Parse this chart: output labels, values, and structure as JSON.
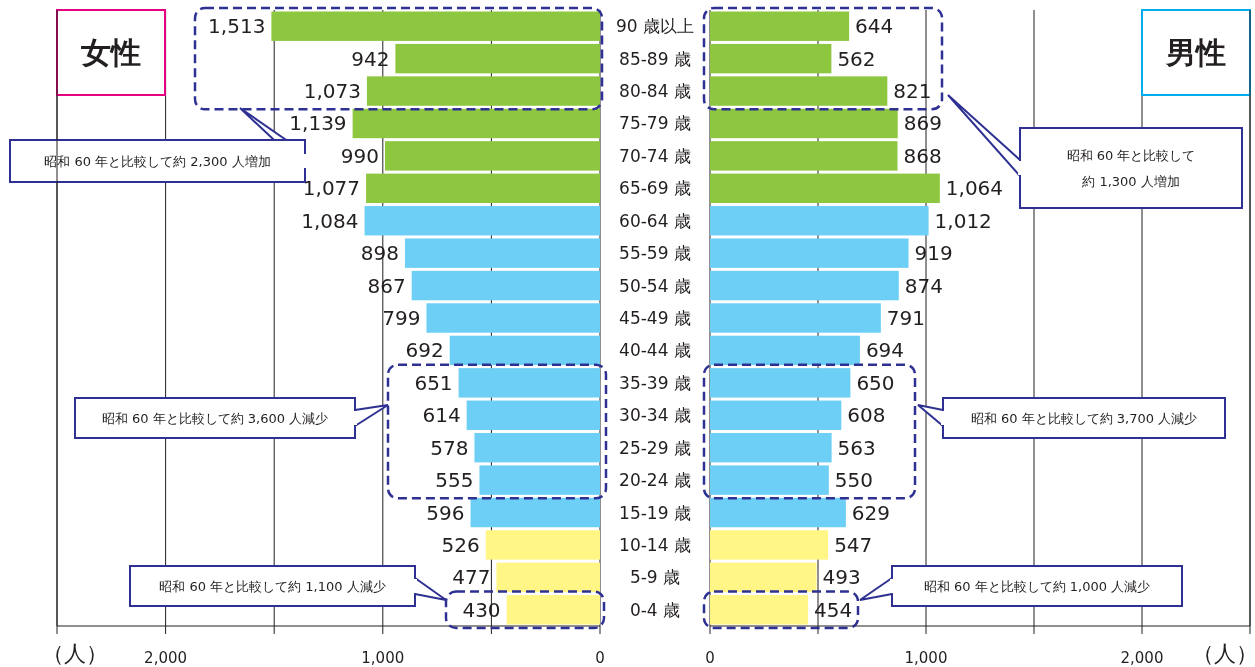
{
  "chart_data": [
    {
      "type": "bar",
      "orientation": "horizontal",
      "title": "女性",
      "xlabel": "（人）",
      "grid": "x",
      "value_labels": [
        "1,513",
        "942",
        "1,073",
        "1,139",
        "990",
        "1,077",
        "1,084",
        "898",
        "867",
        "799",
        "692",
        "651",
        "614",
        "578",
        "555",
        "596",
        "526",
        "477",
        "430"
      ],
      "categories": [
        "90 歳以上",
        "85-89 歳",
        "80-84 歳",
        "75-79 歳",
        "70-74 歳",
        "65-69 歳",
        "60-64 歳",
        "55-59 歳",
        "50-54 歳",
        "45-49 歳",
        "40-44 歳",
        "35-39 歳",
        "30-34 歳",
        "25-29 歳",
        "20-24 歳",
        "15-19 歳",
        "10-14 歳",
        "5-9 歳",
        "0-4 歳"
      ],
      "values": [
        1513,
        942,
        1073,
        1139,
        990,
        1077,
        1084,
        898,
        867,
        799,
        692,
        651,
        614,
        578,
        555,
        596,
        526,
        477,
        430
      ],
      "colors": [
        "#8dc63f",
        "#8dc63f",
        "#8dc63f",
        "#8dc63f",
        "#8dc63f",
        "#8dc63f",
        "#6dcff6",
        "#6dcff6",
        "#6dcff6",
        "#6dcff6",
        "#6dcff6",
        "#6dcff6",
        "#6dcff6",
        "#6dcff6",
        "#6dcff6",
        "#6dcff6",
        "#fff685",
        "#fff685",
        "#fff685"
      ],
      "xlim": [
        2500,
        0
      ],
      "xticks": [
        {
          "value": 2500,
          "label": null
        },
        {
          "value": 2000,
          "label": "2,000"
        },
        {
          "value": 1500,
          "label": null
        },
        {
          "value": 1000,
          "label": "1,000"
        },
        {
          "value": 500,
          "label": null
        },
        0
      ],
      "annotations": [
        "昭和 60 年と比較して約 2,300 人増加",
        "昭和 60 年と比較して約 3,600 人減少",
        "昭和 60 年と比較して約 1,100 人減少"
      ]
    },
    {
      "type": "bar",
      "orientation": "horizontal",
      "title": "男性",
      "xlabel": "（人）",
      "grid": "x",
      "value_labels": [
        "644",
        "562",
        "821",
        "869",
        "868",
        "1,064",
        "1,012",
        "919",
        "874",
        "791",
        "694",
        "650",
        "608",
        "563",
        "550",
        "629",
        "547",
        "493",
        "454"
      ],
      "categories": [
        null,
        null,
        null,
        null,
        null,
        null,
        null,
        null,
        null,
        null,
        null,
        null,
        null,
        null,
        null,
        null,
        null,
        null,
        null
      ],
      "values": [
        644,
        562,
        821,
        869,
        868,
        1064,
        1012,
        919,
        874,
        791,
        694,
        650,
        608,
        563,
        550,
        629,
        547,
        493,
        454
      ],
      "colors": [
        "#8dc63f",
        "#8dc63f",
        "#8dc63f",
        "#8dc63f",
        "#8dc63f",
        "#8dc63f",
        "#6dcff6",
        "#6dcff6",
        "#6dcff6",
        "#6dcff6",
        "#6dcff6",
        "#6dcff6",
        "#6dcff6",
        "#6dcff6",
        "#6dcff6",
        "#6dcff6",
        "#fff685",
        "#fff685",
        "#fff685"
      ],
      "xlim": [
        0,
        2500
      ],
      "xticks": [
        0,
        {
          "value": 500,
          "label": null
        },
        {
          "value": 1000,
          "label": "1,000"
        },
        {
          "value": 1500,
          "label": null
        },
        {
          "value": 2000,
          "label": "2,000"
        },
        {
          "value": 2500,
          "label": null
        }
      ],
      "annotations": [
        "昭和 60 年と比較して約 1,300 人増加",
        "昭和 60 年と比較して約 3,700 人減少",
        "昭和 60 年と比較して約 1,000 人減少"
      ]
    }
  ]
}
